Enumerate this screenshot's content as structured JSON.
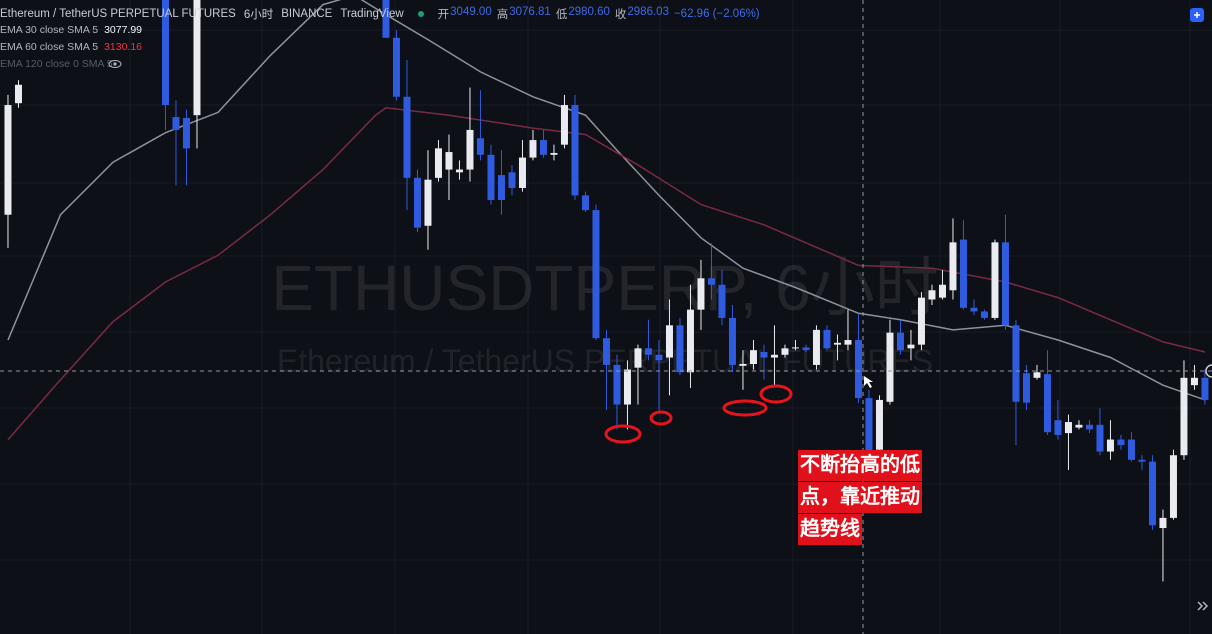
{
  "header": {
    "symbol": "Ethereum / TetherUS PERPETUAL FUTURES",
    "interval": "6小时",
    "exchange": "BINANCE",
    "source": "TradingView",
    "ohlc": [
      {
        "label": "开",
        "value": "3049.00"
      },
      {
        "label": "高",
        "value": "3076.81"
      },
      {
        "label": "低",
        "value": "2980.60"
      },
      {
        "label": "收",
        "value": "2986.03"
      }
    ],
    "change": "−62.96 (−2.06%)"
  },
  "watermark": {
    "symbol": "ETHUSDTPERP, 6小时",
    "description": "Ethereum / TetherUS PERPETUAL FUTURES"
  },
  "annotation": {
    "lines": [
      "不断抬高的低",
      "点，靠近推动",
      "趋势线"
    ]
  },
  "chart_data": {
    "type": "candlestick",
    "xlim": [
      -0.76,
      114.67
    ],
    "ylim": [
      2730,
      3418
    ],
    "up_color": "#e9ebf0",
    "down_color": "#2f5be0",
    "ohlc": [
      [
        3185,
        3315,
        3149,
        3304
      ],
      [
        3306,
        3331,
        3301,
        3326
      ],
      null,
      null,
      null,
      null,
      null,
      null,
      null,
      null,
      null,
      null,
      null,
      null,
      null,
      [
        3440,
        3440,
        3277,
        3304
      ],
      [
        3291,
        3309,
        3217,
        3277
      ],
      [
        3290,
        3299,
        3217,
        3257
      ],
      [
        3293,
        3440,
        3257,
        3440
      ],
      null,
      null,
      null,
      null,
      null,
      null,
      null,
      null,
      null,
      null,
      null,
      null,
      null,
      null,
      null,
      null,
      null,
      [
        3429,
        3429,
        3377,
        3377
      ],
      [
        3377,
        3385,
        3309,
        3313
      ],
      [
        3313,
        3353,
        3190,
        3225
      ],
      [
        3225,
        3234,
        3166,
        3171
      ],
      [
        3173,
        3255,
        3147,
        3223
      ],
      [
        3225,
        3266,
        3221,
        3257
      ],
      [
        3234,
        3272,
        3201,
        3253
      ],
      [
        3231,
        3244,
        3223,
        3234
      ],
      [
        3234,
        3323,
        3221,
        3277
      ],
      [
        3268,
        3320,
        3244,
        3250
      ],
      [
        3250,
        3261,
        3196,
        3201
      ],
      [
        3228,
        3255,
        3185,
        3201
      ],
      [
        3231,
        3239,
        3206,
        3214
      ],
      [
        3214,
        3266,
        3210,
        3247
      ],
      [
        3247,
        3277,
        3244,
        3266
      ],
      [
        3266,
        3277,
        3247,
        3250
      ],
      [
        3250,
        3261,
        3244,
        3252
      ],
      [
        3261,
        3315,
        3257,
        3304
      ],
      [
        3304,
        3315,
        3201,
        3206
      ],
      [
        3206,
        3210,
        3188,
        3190
      ],
      [
        3190,
        3196,
        3049,
        3051
      ],
      [
        3051,
        3060,
        2973,
        3022
      ],
      [
        3022,
        3033,
        2952,
        2979
      ],
      [
        2979,
        3027,
        2952,
        3017
      ],
      [
        3019,
        3044,
        2979,
        3040
      ],
      [
        3040,
        3071,
        3027,
        3033
      ],
      [
        3033,
        3049,
        2973,
        3027
      ],
      [
        3030,
        3093,
        2989,
        3065
      ],
      [
        3065,
        3073,
        3011,
        3014
      ],
      [
        3014,
        3109,
        2997,
        3082
      ],
      [
        3082,
        3136,
        3060,
        3116
      ],
      [
        3116,
        3154,
        3093,
        3109
      ],
      [
        3109,
        3125,
        3065,
        3073
      ],
      [
        3073,
        3087,
        3014,
        3022
      ],
      [
        3021,
        3038,
        2995,
        3023
      ],
      [
        3023,
        3049,
        3017,
        3038
      ],
      [
        3036,
        3044,
        3006,
        3030
      ],
      [
        3030,
        3065,
        3000,
        3033
      ],
      [
        3033,
        3044,
        3030,
        3040
      ],
      [
        3040,
        3049,
        3038,
        3041
      ],
      [
        3041,
        3044,
        3036,
        3038
      ],
      [
        3022,
        3065,
        3017,
        3060
      ],
      [
        3060,
        3065,
        3038,
        3040
      ],
      [
        3044,
        3055,
        3027,
        3046
      ],
      [
        3044,
        3082,
        3038,
        3049
      ],
      [
        3049,
        3076.81,
        2980.6,
        2986.03
      ],
      [
        2986,
        2995,
        2919,
        2924
      ],
      [
        2930,
        2989,
        2919,
        2984
      ],
      [
        2982,
        3071,
        2979,
        3057
      ],
      [
        3057,
        3071,
        3033,
        3038
      ],
      [
        3040,
        3060,
        3027,
        3044
      ],
      [
        3044,
        3101,
        3038,
        3095
      ],
      [
        3093,
        3109,
        3087,
        3103
      ],
      [
        3095,
        3125,
        3093,
        3109
      ],
      [
        3103,
        3181,
        3093,
        3155
      ],
      [
        3158,
        3179,
        3082,
        3084
      ],
      [
        3084,
        3093,
        3076,
        3080
      ],
      [
        3080,
        3082,
        3071,
        3073
      ],
      [
        3073,
        3158,
        3071,
        3155
      ],
      [
        3155,
        3185,
        3060,
        3065
      ],
      [
        3065,
        3071,
        2935,
        2982
      ],
      [
        3013,
        3022,
        2973,
        2981
      ],
      [
        3008,
        3022,
        3006,
        3014
      ],
      [
        3012,
        3038,
        2946,
        2949
      ],
      [
        2962,
        2984,
        2941,
        2946
      ],
      [
        2948,
        2968,
        2908,
        2960
      ],
      [
        2954,
        2962,
        2952,
        2957
      ],
      [
        2957,
        2962,
        2948,
        2952
      ],
      [
        2957,
        2975,
        2924,
        2928
      ],
      [
        2928,
        2962,
        2919,
        2941
      ],
      [
        2941,
        2946,
        2930,
        2935
      ],
      [
        2941,
        2949,
        2917,
        2919
      ],
      [
        2919,
        2924,
        2908,
        2917
      ],
      [
        2917,
        2924,
        2843,
        2848
      ],
      [
        2845,
        2865,
        2787,
        2856
      ],
      [
        2856,
        2930,
        2854,
        2924
      ],
      [
        2924,
        3027,
        2919,
        3008
      ],
      [
        3000,
        3022,
        2995,
        3008
      ],
      [
        3008,
        3017,
        2979,
        2984
      ]
    ],
    "series": [
      {
        "name": "EMA 30 close SMA 5",
        "legend_value": "3077.99",
        "color": "#8e929c",
        "x": [
          0,
          5,
          10,
          15,
          20,
          25,
          30,
          33,
          36,
          40,
          45,
          50,
          55,
          58,
          62,
          66,
          70,
          75,
          81,
          85,
          90,
          95,
          100,
          105,
          110,
          114
        ],
        "values": [
          3049,
          3185,
          3242,
          3274,
          3296,
          3358,
          3413,
          3423,
          3402,
          3375,
          3340,
          3313,
          3293,
          3255,
          3206,
          3160,
          3127,
          3106,
          3078,
          3071,
          3060,
          3065,
          3049,
          3030,
          3000,
          2984
        ]
      },
      {
        "name": "EMA 60 close SMA 5",
        "legend_value": "3130.16",
        "color": "#7a2a44",
        "x": [
          0,
          5,
          10,
          15,
          20,
          25,
          30,
          35,
          36,
          42,
          50,
          55,
          60,
          66,
          72,
          81,
          88,
          95,
          100,
          105,
          110,
          114
        ],
        "values": [
          2941,
          3006,
          3069,
          3112,
          3141,
          3185,
          3234,
          3293,
          3301,
          3293,
          3279,
          3272,
          3239,
          3196,
          3174,
          3130,
          3127,
          3112,
          3095,
          3071,
          3047,
          3036
        ]
      }
    ],
    "hidden_legend": "EMA 120 close 0 SMA 5"
  }
}
